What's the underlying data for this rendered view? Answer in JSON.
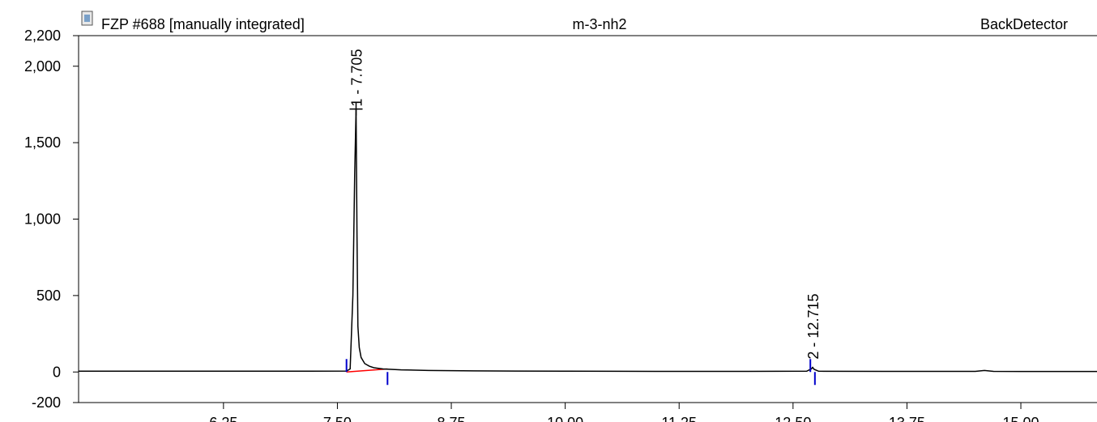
{
  "chart_data": {
    "type": "line",
    "title": "FZP #688 [manually integrated]",
    "subtitle": "m-3-nh2",
    "detector": "BackDetector",
    "xlim": [
      4.66,
      15.88
    ],
    "xticks": [
      {
        "value": 6.25,
        "label": "6.25"
      },
      {
        "value": 7.5,
        "label": "7.50"
      },
      {
        "value": 8.75,
        "label": "8.75"
      },
      {
        "value": 10,
        "label": "10.00"
      },
      {
        "value": 11.25,
        "label": "11.25"
      },
      {
        "value": 12.5,
        "label": "12.50"
      },
      {
        "value": 13.75,
        "label": "13.75"
      },
      {
        "value": 15,
        "label": "15.00"
      }
    ],
    "ylim": [
      -200,
      2200
    ],
    "yticks": [
      {
        "value": -200,
        "label": "-200"
      },
      0,
      500,
      {
        "value": 1000,
        "label": "1,000"
      },
      {
        "value": 1500,
        "label": "1,500"
      },
      {
        "value": 2000,
        "label": "2,000"
      },
      {
        "value": 2200,
        "label": "2,200"
      }
    ],
    "series": [
      {
        "color": "#000000",
        "x": [
          4.66,
          6.0,
          7.0,
          7.6,
          7.64,
          7.67,
          7.69,
          7.705,
          7.715,
          7.725,
          7.74,
          7.76,
          7.8,
          7.85,
          7.9,
          8.0,
          8.2,
          8.5,
          9.0,
          10.0,
          11.0,
          12.0,
          12.65,
          12.7,
          12.715,
          12.73,
          12.78,
          13.5,
          14.5,
          14.6,
          14.7,
          15.0,
          15.88
        ],
        "values": [
          5,
          5,
          5,
          6,
          20,
          500,
          1300,
          1720,
          900,
          300,
          160,
          95,
          55,
          38,
          28,
          20,
          14,
          10,
          7,
          5,
          4,
          4,
          5,
          20,
          30,
          18,
          5,
          4,
          4,
          10,
          4,
          3,
          3
        ]
      }
    ],
    "baselines": [
      {
        "color": "#ff0000",
        "x": [
          7.6,
          8.05
        ],
        "values": [
          0,
          20
        ]
      }
    ],
    "integration_marks": [
      7.6,
      8.05,
      12.69,
      12.74
    ],
    "peaks": [
      {
        "label": "1 - 7.705",
        "x": 7.705,
        "y": 1720
      },
      {
        "label": "2 - 12.715",
        "x": 12.715,
        "y": 30
      }
    ]
  }
}
